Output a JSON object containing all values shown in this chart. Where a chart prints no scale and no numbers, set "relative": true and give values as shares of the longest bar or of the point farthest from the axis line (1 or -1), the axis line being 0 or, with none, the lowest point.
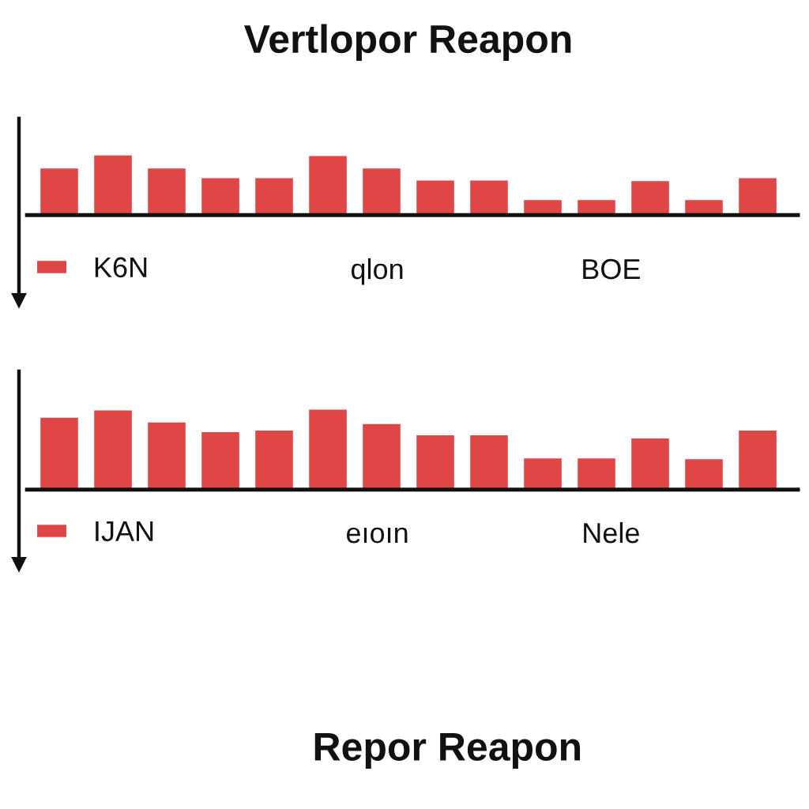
{
  "chart_data": [
    {
      "type": "bar",
      "title": "Vertlopor Reapon",
      "categories": [
        null,
        null,
        null,
        null,
        null,
        null,
        null,
        null,
        null,
        null,
        null,
        null,
        null,
        null
      ],
      "series": [
        {
          "name": "K6N",
          "color": "#e04646",
          "values": [
            0.78,
            1,
            0.78,
            0.62,
            0.62,
            0.99,
            0.78,
            0.58,
            0.58,
            0.25,
            0.25,
            0.57,
            0.25,
            0.62
          ]
        }
      ],
      "relative": true,
      "legend": "bottom left",
      "annotations": [
        "qlon",
        "BOE"
      ]
    },
    {
      "type": "bar",
      "xlabel": "Repor Reapon",
      "categories": [
        null,
        null,
        null,
        null,
        null,
        null,
        null,
        null,
        null,
        null,
        null,
        null,
        null,
        null
      ],
      "series": [
        {
          "name": "IJAN",
          "color": "#e04646",
          "values": [
            0.9,
            0.99,
            0.84,
            0.72,
            0.74,
            1,
            0.82,
            0.68,
            0.68,
            0.39,
            0.39,
            0.64,
            0.38,
            0.74
          ]
        }
      ],
      "relative": true,
      "legend": "bottom left",
      "annotations": [
        "eıoın",
        "Nele"
      ]
    }
  ]
}
